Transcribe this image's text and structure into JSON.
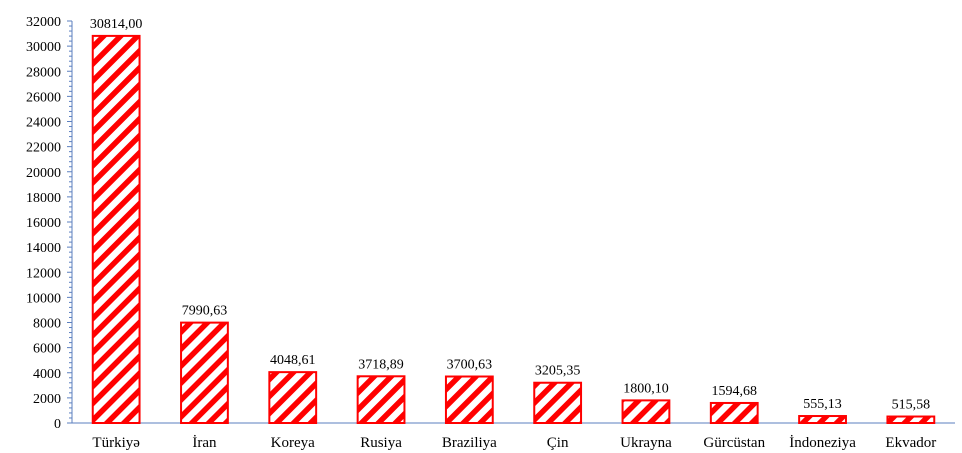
{
  "chart_data": {
    "type": "bar",
    "title": "",
    "xlabel": "",
    "ylabel": "",
    "categories": [
      "Türkiyə",
      "İran",
      "Koreya",
      "Rusiya",
      "Braziliya",
      "Çin",
      "Ukrayna",
      "Gürcüstan",
      "İndoneziya",
      "Ekvador"
    ],
    "values": [
      30814.0,
      7990.63,
      4048.61,
      3718.89,
      3700.63,
      3205.35,
      1800.1,
      1594.68,
      555.13,
      515.58
    ],
    "data_labels": [
      "30814,00",
      "7990,63",
      "4048,61",
      "3718,89",
      "3700,63",
      "3205,35",
      "1800,10",
      "1594,68",
      "555,13",
      "515,58"
    ],
    "ylim": [
      0,
      32000
    ],
    "y_ticks": [
      0,
      2000,
      4000,
      6000,
      8000,
      10000,
      12000,
      14000,
      16000,
      18000,
      20000,
      22000,
      24000,
      26000,
      28000,
      30000,
      32000
    ],
    "grid": false,
    "legend": "none",
    "bar_color": "#ff0000",
    "bar_pattern": "diagonal-hatch",
    "axis_color": "#5b7fbf"
  }
}
